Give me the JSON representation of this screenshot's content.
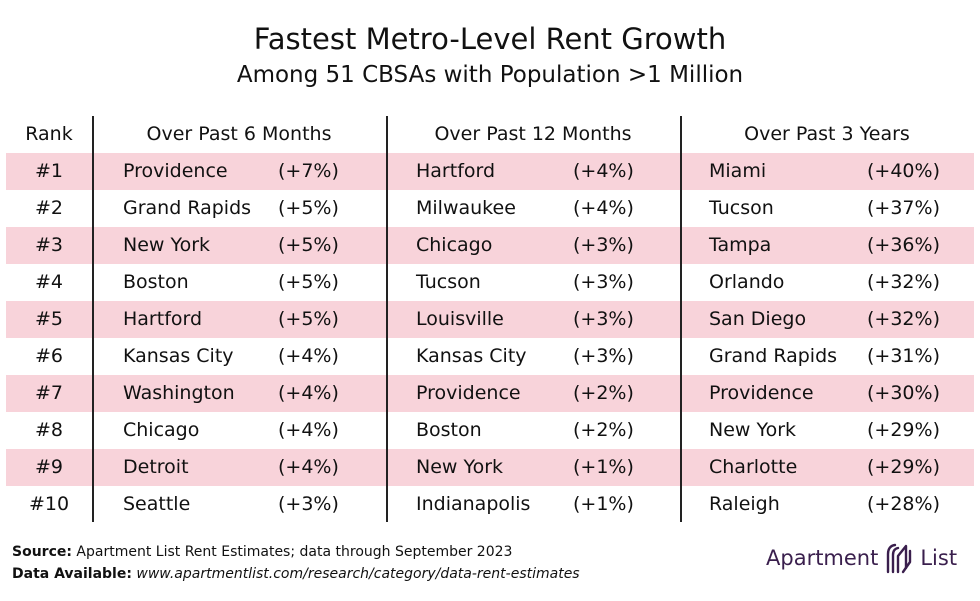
{
  "title": "Fastest Metro-Level Rent Growth",
  "subtitle": "Among 51 CBSAs with Population >1 Million",
  "headers": {
    "rank": "Rank",
    "six_months": "Over Past 6 Months",
    "twelve_months": "Over Past 12 Months",
    "three_years": "Over Past 3 Years"
  },
  "rows": [
    {
      "rank": "#1",
      "m6_city": "Providence",
      "m6_pct": "(+7%)",
      "m12_city": "Hartford",
      "m12_pct": "(+4%)",
      "y3_city": "Miami",
      "y3_pct": "(+40%)"
    },
    {
      "rank": "#2",
      "m6_city": "Grand Rapids",
      "m6_pct": "(+5%)",
      "m12_city": "Milwaukee",
      "m12_pct": "(+4%)",
      "y3_city": "Tucson",
      "y3_pct": "(+37%)"
    },
    {
      "rank": "#3",
      "m6_city": "New York",
      "m6_pct": "(+5%)",
      "m12_city": "Chicago",
      "m12_pct": "(+3%)",
      "y3_city": "Tampa",
      "y3_pct": "(+36%)"
    },
    {
      "rank": "#4",
      "m6_city": "Boston",
      "m6_pct": "(+5%)",
      "m12_city": "Tucson",
      "m12_pct": "(+3%)",
      "y3_city": "Orlando",
      "y3_pct": "(+32%)"
    },
    {
      "rank": "#5",
      "m6_city": "Hartford",
      "m6_pct": "(+5%)",
      "m12_city": "Louisville",
      "m12_pct": "(+3%)",
      "y3_city": "San Diego",
      "y3_pct": "(+32%)"
    },
    {
      "rank": "#6",
      "m6_city": "Kansas City",
      "m6_pct": "(+4%)",
      "m12_city": "Kansas City",
      "m12_pct": "(+3%)",
      "y3_city": "Grand Rapids",
      "y3_pct": "(+31%)"
    },
    {
      "rank": "#7",
      "m6_city": "Washington",
      "m6_pct": "(+4%)",
      "m12_city": "Providence",
      "m12_pct": "(+2%)",
      "y3_city": "Providence",
      "y3_pct": "(+30%)"
    },
    {
      "rank": "#8",
      "m6_city": "Chicago",
      "m6_pct": "(+4%)",
      "m12_city": "Boston",
      "m12_pct": "(+2%)",
      "y3_city": "New York",
      "y3_pct": "(+29%)"
    },
    {
      "rank": "#9",
      "m6_city": "Detroit",
      "m6_pct": "(+4%)",
      "m12_city": "New York",
      "m12_pct": "(+1%)",
      "y3_city": "Charlotte",
      "y3_pct": "(+29%)"
    },
    {
      "rank": "#10",
      "m6_city": "Seattle",
      "m6_pct": "(+3%)",
      "m12_city": "Indianapolis",
      "m12_pct": "(+1%)",
      "y3_city": "Raleigh",
      "y3_pct": "(+28%)"
    }
  ],
  "footer": {
    "source_label": "Source:",
    "source_text": "Apartment List Rent Estimates; data through September 2023",
    "data_label": "Data Available:",
    "data_url": "www.apartmentlist.com/research/category/data-rent-estimates"
  },
  "logo": {
    "word1": "Apartment",
    "word2": "List",
    "icon": "apartment-list-logo-icon"
  },
  "colors": {
    "row_shade": "#f8d3da",
    "logo": "#3a1f4d"
  }
}
